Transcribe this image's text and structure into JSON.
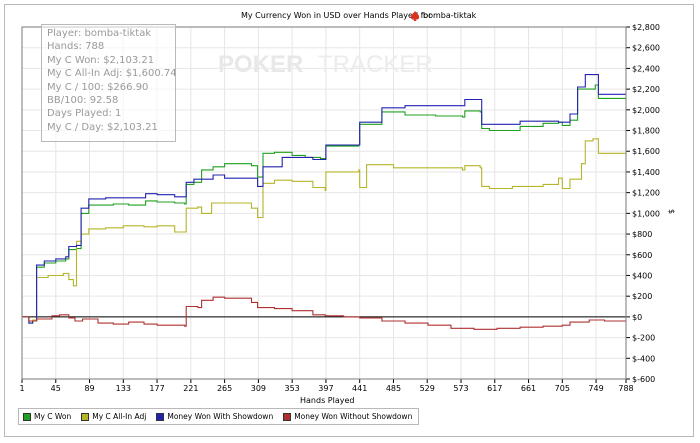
{
  "title_prefix": "My Currency Won in USD over Hands Played for",
  "player_name": "bomba-tiktak",
  "watermark_left": "POKER",
  "watermark_right": "TRACKER",
  "stats": [
    "Player: bomba-tiktak",
    "Hands: 788",
    "My C Won: $2,103.21",
    "My C All-In Adj: $1,600.74",
    "My C / 100: $266.90",
    "BB/100: 92.58",
    "Days Played: 1",
    "My C / Day: $2,103.21"
  ],
  "colors": {
    "won": "#1fa01f",
    "allin": "#b5b52a",
    "showdown": "#2323b0",
    "noshowdown": "#b03030",
    "grid": "#e6e6e6",
    "zero_line": "#000000"
  },
  "chart_data": {
    "type": "line",
    "title": "My Currency Won in USD over Hands Played for bomba-tiktak",
    "xlabel": "Hands Played",
    "ylabel": "$",
    "xlim": [
      1,
      788
    ],
    "ylim": [
      -600,
      2800
    ],
    "x_ticks": [
      1,
      45,
      89,
      133,
      177,
      221,
      265,
      309,
      353,
      397,
      441,
      485,
      529,
      573,
      617,
      661,
      705,
      749,
      788
    ],
    "y_ticks": [
      -600,
      -400,
      -200,
      0,
      200,
      400,
      600,
      800,
      1000,
      1200,
      1400,
      1600,
      1800,
      2000,
      2200,
      2400,
      2600,
      2800
    ],
    "y_tick_labels": [
      "$-600",
      "$-400",
      "$-200",
      "$0",
      "$200",
      "$400",
      "$600",
      "$800",
      "$1,000",
      "$1,200",
      "$1,400",
      "$1,600",
      "$1,800",
      "$2,000",
      "$2,200",
      "$2,400",
      "$2,600",
      "$2,800"
    ],
    "grid": true,
    "legend_position": "bottom-left",
    "series": [
      {
        "name": "My C Won",
        "color_key": "won",
        "points": [
          [
            1,
            0
          ],
          [
            10,
            -60
          ],
          [
            15,
            -40
          ],
          [
            20,
            480
          ],
          [
            30,
            520
          ],
          [
            45,
            540
          ],
          [
            58,
            560
          ],
          [
            62,
            650
          ],
          [
            72,
            660
          ],
          [
            78,
            1000
          ],
          [
            88,
            1080
          ],
          [
            100,
            1080
          ],
          [
            120,
            1090
          ],
          [
            140,
            1080
          ],
          [
            162,
            1120
          ],
          [
            177,
            1110
          ],
          [
            200,
            1100
          ],
          [
            213,
            1090
          ],
          [
            215,
            1280
          ],
          [
            225,
            1300
          ],
          [
            235,
            1420
          ],
          [
            250,
            1450
          ],
          [
            265,
            1480
          ],
          [
            300,
            1460
          ],
          [
            308,
            1350
          ],
          [
            315,
            1580
          ],
          [
            330,
            1590
          ],
          [
            353,
            1560
          ],
          [
            370,
            1540
          ],
          [
            390,
            1530
          ],
          [
            396,
            1530
          ],
          [
            397,
            1650
          ],
          [
            440,
            1660
          ],
          [
            441,
            1860
          ],
          [
            470,
            1980
          ],
          [
            500,
            1950
          ],
          [
            540,
            1940
          ],
          [
            575,
            1930
          ],
          [
            578,
            1990
          ],
          [
            598,
            1980
          ],
          [
            600,
            1820
          ],
          [
            605,
            1820
          ],
          [
            610,
            1800
          ],
          [
            650,
            1840
          ],
          [
            680,
            1870
          ],
          [
            700,
            1880
          ],
          [
            705,
            1850
          ],
          [
            715,
            1900
          ],
          [
            725,
            2200
          ],
          [
            748,
            2240
          ],
          [
            752,
            2110
          ],
          [
            788,
            2100
          ]
        ]
      },
      {
        "name": "My C All-In Adj",
        "color_key": "allin",
        "points": [
          [
            1,
            0
          ],
          [
            10,
            -40
          ],
          [
            15,
            -30
          ],
          [
            20,
            380
          ],
          [
            35,
            400
          ],
          [
            55,
            420
          ],
          [
            62,
            360
          ],
          [
            68,
            300
          ],
          [
            72,
            730
          ],
          [
            78,
            800
          ],
          [
            88,
            850
          ],
          [
            110,
            860
          ],
          [
            133,
            880
          ],
          [
            160,
            870
          ],
          [
            177,
            880
          ],
          [
            200,
            820
          ],
          [
            213,
            820
          ],
          [
            215,
            1050
          ],
          [
            230,
            1060
          ],
          [
            235,
            1000
          ],
          [
            248,
            1100
          ],
          [
            265,
            1100
          ],
          [
            300,
            1050
          ],
          [
            308,
            960
          ],
          [
            315,
            1290
          ],
          [
            330,
            1320
          ],
          [
            353,
            1310
          ],
          [
            380,
            1250
          ],
          [
            396,
            1220
          ],
          [
            397,
            1400
          ],
          [
            440,
            1420
          ],
          [
            441,
            1250
          ],
          [
            450,
            1470
          ],
          [
            485,
            1440
          ],
          [
            530,
            1440
          ],
          [
            575,
            1420
          ],
          [
            578,
            1460
          ],
          [
            598,
            1440
          ],
          [
            600,
            1260
          ],
          [
            610,
            1240
          ],
          [
            640,
            1260
          ],
          [
            680,
            1280
          ],
          [
            700,
            1340
          ],
          [
            705,
            1240
          ],
          [
            715,
            1330
          ],
          [
            730,
            1480
          ],
          [
            735,
            1700
          ],
          [
            745,
            1720
          ],
          [
            752,
            1580
          ],
          [
            788,
            1600
          ]
        ]
      },
      {
        "name": "Money Won With Showdown",
        "color_key": "showdown",
        "points": [
          [
            1,
            0
          ],
          [
            10,
            -60
          ],
          [
            15,
            -40
          ],
          [
            20,
            500
          ],
          [
            30,
            540
          ],
          [
            45,
            560
          ],
          [
            58,
            580
          ],
          [
            62,
            680
          ],
          [
            72,
            690
          ],
          [
            78,
            1050
          ],
          [
            88,
            1140
          ],
          [
            110,
            1150
          ],
          [
            133,
            1150
          ],
          [
            162,
            1190
          ],
          [
            177,
            1180
          ],
          [
            200,
            1160
          ],
          [
            213,
            1160
          ],
          [
            215,
            1300
          ],
          [
            225,
            1330
          ],
          [
            250,
            1370
          ],
          [
            265,
            1340
          ],
          [
            300,
            1340
          ],
          [
            308,
            1260
          ],
          [
            315,
            1450
          ],
          [
            340,
            1540
          ],
          [
            353,
            1540
          ],
          [
            380,
            1520
          ],
          [
            396,
            1520
          ],
          [
            397,
            1660
          ],
          [
            440,
            1660
          ],
          [
            441,
            1880
          ],
          [
            470,
            2020
          ],
          [
            500,
            2040
          ],
          [
            540,
            2040
          ],
          [
            575,
            2040
          ],
          [
            578,
            2100
          ],
          [
            598,
            2100
          ],
          [
            600,
            1860
          ],
          [
            610,
            1860
          ],
          [
            650,
            1890
          ],
          [
            700,
            1880
          ],
          [
            705,
            1880
          ],
          [
            715,
            1960
          ],
          [
            725,
            2220
          ],
          [
            735,
            2340
          ],
          [
            748,
            2340
          ],
          [
            752,
            2150
          ],
          [
            788,
            2150
          ]
        ]
      },
      {
        "name": "Money Won Without Showdown",
        "color_key": "noshowdown",
        "points": [
          [
            1,
            0
          ],
          [
            10,
            -40
          ],
          [
            20,
            -20
          ],
          [
            40,
            10
          ],
          [
            50,
            20
          ],
          [
            62,
            -10
          ],
          [
            70,
            -40
          ],
          [
            80,
            -20
          ],
          [
            100,
            -60
          ],
          [
            120,
            -70
          ],
          [
            140,
            -50
          ],
          [
            160,
            -70
          ],
          [
            177,
            -80
          ],
          [
            200,
            -80
          ],
          [
            213,
            -90
          ],
          [
            215,
            100
          ],
          [
            230,
            90
          ],
          [
            235,
            160
          ],
          [
            250,
            190
          ],
          [
            265,
            180
          ],
          [
            300,
            140
          ],
          [
            308,
            90
          ],
          [
            330,
            80
          ],
          [
            353,
            60
          ],
          [
            380,
            20
          ],
          [
            396,
            10
          ],
          [
            420,
            0
          ],
          [
            441,
            -10
          ],
          [
            470,
            -40
          ],
          [
            500,
            -60
          ],
          [
            530,
            -80
          ],
          [
            560,
            -110
          ],
          [
            590,
            -120
          ],
          [
            620,
            -110
          ],
          [
            650,
            -100
          ],
          [
            680,
            -90
          ],
          [
            705,
            -80
          ],
          [
            715,
            -50
          ],
          [
            740,
            -30
          ],
          [
            760,
            -40
          ],
          [
            788,
            -40
          ]
        ]
      }
    ]
  }
}
